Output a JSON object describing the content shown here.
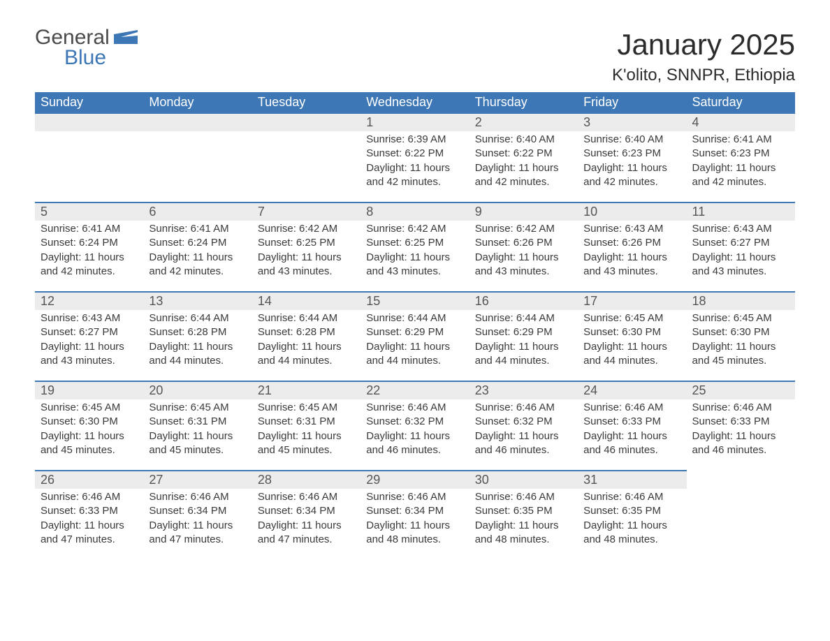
{
  "logo": {
    "word1": "General",
    "word2": "Blue",
    "shape_color": "#3d77b5"
  },
  "title": "January 2025",
  "location": "K'olito, SNNPR, Ethiopia",
  "colors": {
    "header_bg": "#3d77b5",
    "header_text": "#ffffff",
    "strip_bg": "#ececec",
    "strip_border": "#3d77b5",
    "body_text": "#3a3a3a",
    "page_bg": "#ffffff"
  },
  "typography": {
    "title_fontsize": 42,
    "location_fontsize": 24,
    "weekday_fontsize": 18,
    "daynum_fontsize": 18,
    "body_fontsize": 15
  },
  "layout": {
    "columns": 7,
    "rows": 5,
    "leading_blanks": 3,
    "trailing_blanks": 1
  },
  "weekdays": [
    "Sunday",
    "Monday",
    "Tuesday",
    "Wednesday",
    "Thursday",
    "Friday",
    "Saturday"
  ],
  "days": [
    {
      "n": 1,
      "sunrise": "6:39 AM",
      "sunset": "6:22 PM",
      "daylight": "11 hours and 42 minutes."
    },
    {
      "n": 2,
      "sunrise": "6:40 AM",
      "sunset": "6:22 PM",
      "daylight": "11 hours and 42 minutes."
    },
    {
      "n": 3,
      "sunrise": "6:40 AM",
      "sunset": "6:23 PM",
      "daylight": "11 hours and 42 minutes."
    },
    {
      "n": 4,
      "sunrise": "6:41 AM",
      "sunset": "6:23 PM",
      "daylight": "11 hours and 42 minutes."
    },
    {
      "n": 5,
      "sunrise": "6:41 AM",
      "sunset": "6:24 PM",
      "daylight": "11 hours and 42 minutes."
    },
    {
      "n": 6,
      "sunrise": "6:41 AM",
      "sunset": "6:24 PM",
      "daylight": "11 hours and 42 minutes."
    },
    {
      "n": 7,
      "sunrise": "6:42 AM",
      "sunset": "6:25 PM",
      "daylight": "11 hours and 43 minutes."
    },
    {
      "n": 8,
      "sunrise": "6:42 AM",
      "sunset": "6:25 PM",
      "daylight": "11 hours and 43 minutes."
    },
    {
      "n": 9,
      "sunrise": "6:42 AM",
      "sunset": "6:26 PM",
      "daylight": "11 hours and 43 minutes."
    },
    {
      "n": 10,
      "sunrise": "6:43 AM",
      "sunset": "6:26 PM",
      "daylight": "11 hours and 43 minutes."
    },
    {
      "n": 11,
      "sunrise": "6:43 AM",
      "sunset": "6:27 PM",
      "daylight": "11 hours and 43 minutes."
    },
    {
      "n": 12,
      "sunrise": "6:43 AM",
      "sunset": "6:27 PM",
      "daylight": "11 hours and 43 minutes."
    },
    {
      "n": 13,
      "sunrise": "6:44 AM",
      "sunset": "6:28 PM",
      "daylight": "11 hours and 44 minutes."
    },
    {
      "n": 14,
      "sunrise": "6:44 AM",
      "sunset": "6:28 PM",
      "daylight": "11 hours and 44 minutes."
    },
    {
      "n": 15,
      "sunrise": "6:44 AM",
      "sunset": "6:29 PM",
      "daylight": "11 hours and 44 minutes."
    },
    {
      "n": 16,
      "sunrise": "6:44 AM",
      "sunset": "6:29 PM",
      "daylight": "11 hours and 44 minutes."
    },
    {
      "n": 17,
      "sunrise": "6:45 AM",
      "sunset": "6:30 PM",
      "daylight": "11 hours and 44 minutes."
    },
    {
      "n": 18,
      "sunrise": "6:45 AM",
      "sunset": "6:30 PM",
      "daylight": "11 hours and 45 minutes."
    },
    {
      "n": 19,
      "sunrise": "6:45 AM",
      "sunset": "6:30 PM",
      "daylight": "11 hours and 45 minutes."
    },
    {
      "n": 20,
      "sunrise": "6:45 AM",
      "sunset": "6:31 PM",
      "daylight": "11 hours and 45 minutes."
    },
    {
      "n": 21,
      "sunrise": "6:45 AM",
      "sunset": "6:31 PM",
      "daylight": "11 hours and 45 minutes."
    },
    {
      "n": 22,
      "sunrise": "6:46 AM",
      "sunset": "6:32 PM",
      "daylight": "11 hours and 46 minutes."
    },
    {
      "n": 23,
      "sunrise": "6:46 AM",
      "sunset": "6:32 PM",
      "daylight": "11 hours and 46 minutes."
    },
    {
      "n": 24,
      "sunrise": "6:46 AM",
      "sunset": "6:33 PM",
      "daylight": "11 hours and 46 minutes."
    },
    {
      "n": 25,
      "sunrise": "6:46 AM",
      "sunset": "6:33 PM",
      "daylight": "11 hours and 46 minutes."
    },
    {
      "n": 26,
      "sunrise": "6:46 AM",
      "sunset": "6:33 PM",
      "daylight": "11 hours and 47 minutes."
    },
    {
      "n": 27,
      "sunrise": "6:46 AM",
      "sunset": "6:34 PM",
      "daylight": "11 hours and 47 minutes."
    },
    {
      "n": 28,
      "sunrise": "6:46 AM",
      "sunset": "6:34 PM",
      "daylight": "11 hours and 47 minutes."
    },
    {
      "n": 29,
      "sunrise": "6:46 AM",
      "sunset": "6:34 PM",
      "daylight": "11 hours and 48 minutes."
    },
    {
      "n": 30,
      "sunrise": "6:46 AM",
      "sunset": "6:35 PM",
      "daylight": "11 hours and 48 minutes."
    },
    {
      "n": 31,
      "sunrise": "6:46 AM",
      "sunset": "6:35 PM",
      "daylight": "11 hours and 48 minutes."
    }
  ],
  "labels": {
    "sunrise": "Sunrise: ",
    "sunset": "Sunset: ",
    "daylight": "Daylight: "
  }
}
